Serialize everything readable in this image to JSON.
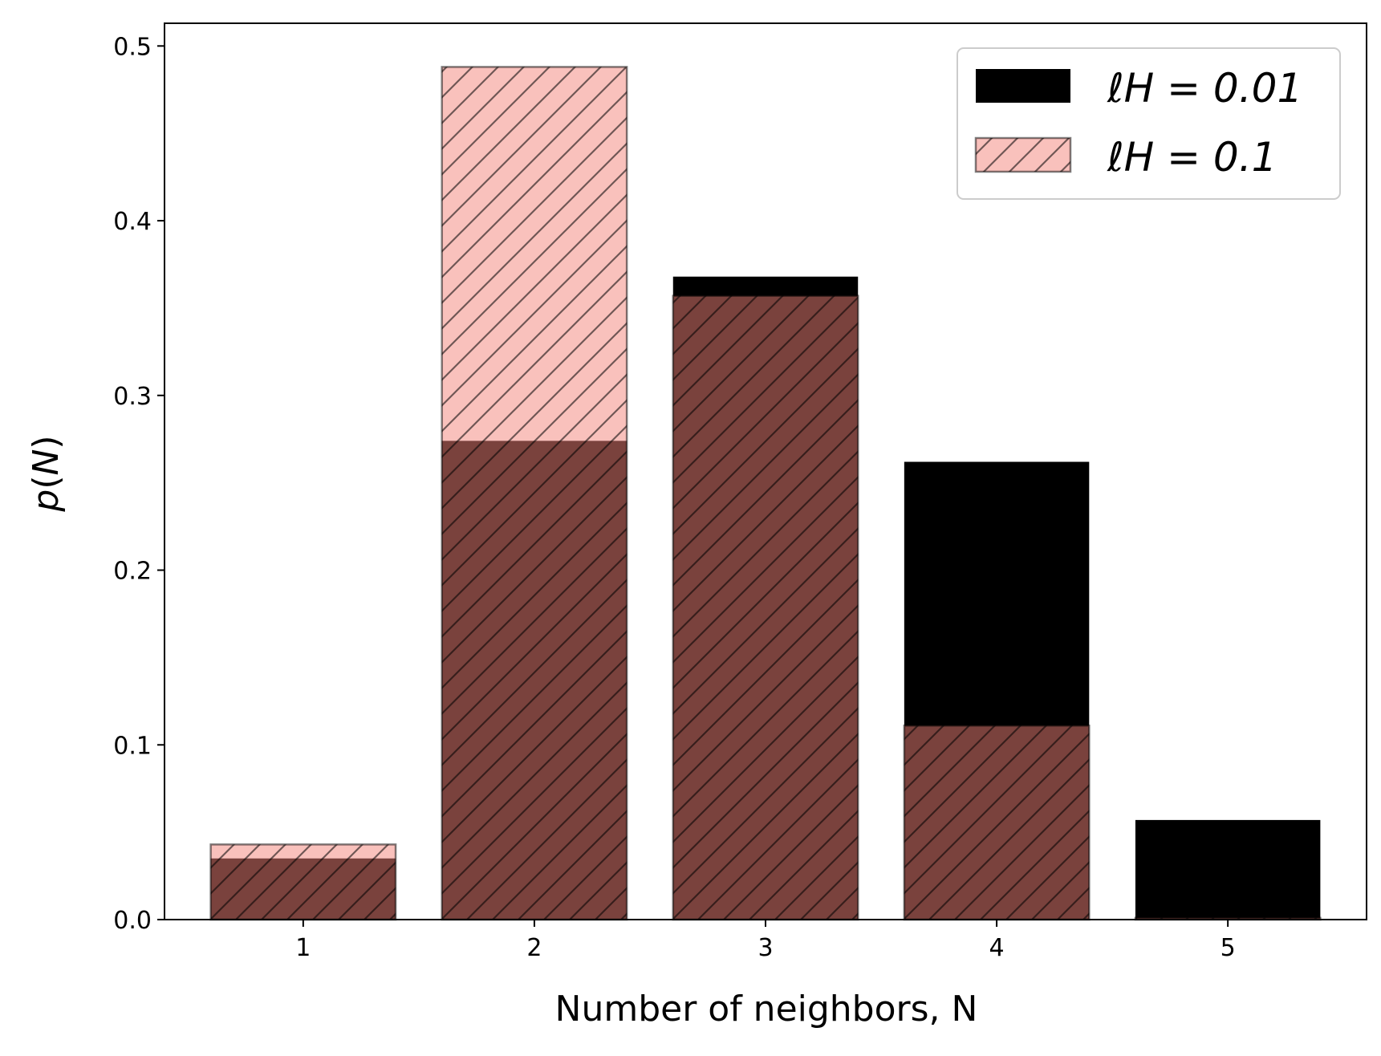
{
  "chart_data": {
    "type": "bar",
    "categories": [
      "1",
      "2",
      "3",
      "4",
      "5"
    ],
    "x": [
      1,
      2,
      3,
      4,
      5
    ],
    "series": [
      {
        "name": "ℓH = 0.01",
        "values": [
          0.035,
          0.274,
          0.368,
          0.262,
          0.057
        ],
        "color": "#000000",
        "hatch": false
      },
      {
        "name": "ℓH = 0.1",
        "values": [
          0.043,
          0.488,
          0.357,
          0.111,
          0.001
        ],
        "color": "#f4837a",
        "opacity": 0.5,
        "hatch": true,
        "edge_color": "#000000"
      }
    ],
    "xlabel": "Number of neighbors, N",
    "ylabel": "p(N)",
    "ylim": [
      0,
      0.513
    ],
    "yticks": [
      "0.0",
      "0.1",
      "0.2",
      "0.3",
      "0.4",
      "0.5"
    ],
    "ytick_values": [
      0,
      0.1,
      0.2,
      0.3,
      0.4,
      0.5
    ],
    "legend": {
      "placement": "top-right"
    },
    "grid": false
  }
}
